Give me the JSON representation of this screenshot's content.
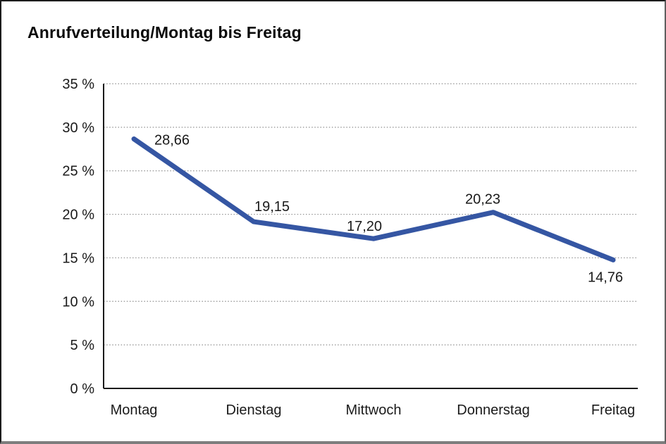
{
  "title": "Anrufverteilung/Montag bis Freitag",
  "chart_data": {
    "type": "line",
    "title": "Anrufverteilung/Montag bis Freitag",
    "categories": [
      "Montag",
      "Dienstag",
      "Mittwoch",
      "Donnerstag",
      "Freitag"
    ],
    "values": [
      28.66,
      19.15,
      17.2,
      20.23,
      14.76
    ],
    "point_labels": [
      "28,66",
      "19,15",
      "17,20",
      "20,23",
      "14,76"
    ],
    "ytick_labels": [
      "0 %",
      "5 %",
      "10 %",
      "15 %",
      "20 %",
      "25 %",
      "30 %",
      "35 %"
    ],
    "ytick_values": [
      0,
      5,
      10,
      15,
      20,
      25,
      30,
      35
    ],
    "ylim": [
      0,
      35
    ],
    "xlabel": "",
    "ylabel": "%",
    "grid": "horizontal-dotted",
    "legend": "none",
    "line_color": "#3556A3",
    "axis_color": "#1a1a1a",
    "grid_color": "#8f8f8f",
    "label_color": "#1a1a1a"
  }
}
